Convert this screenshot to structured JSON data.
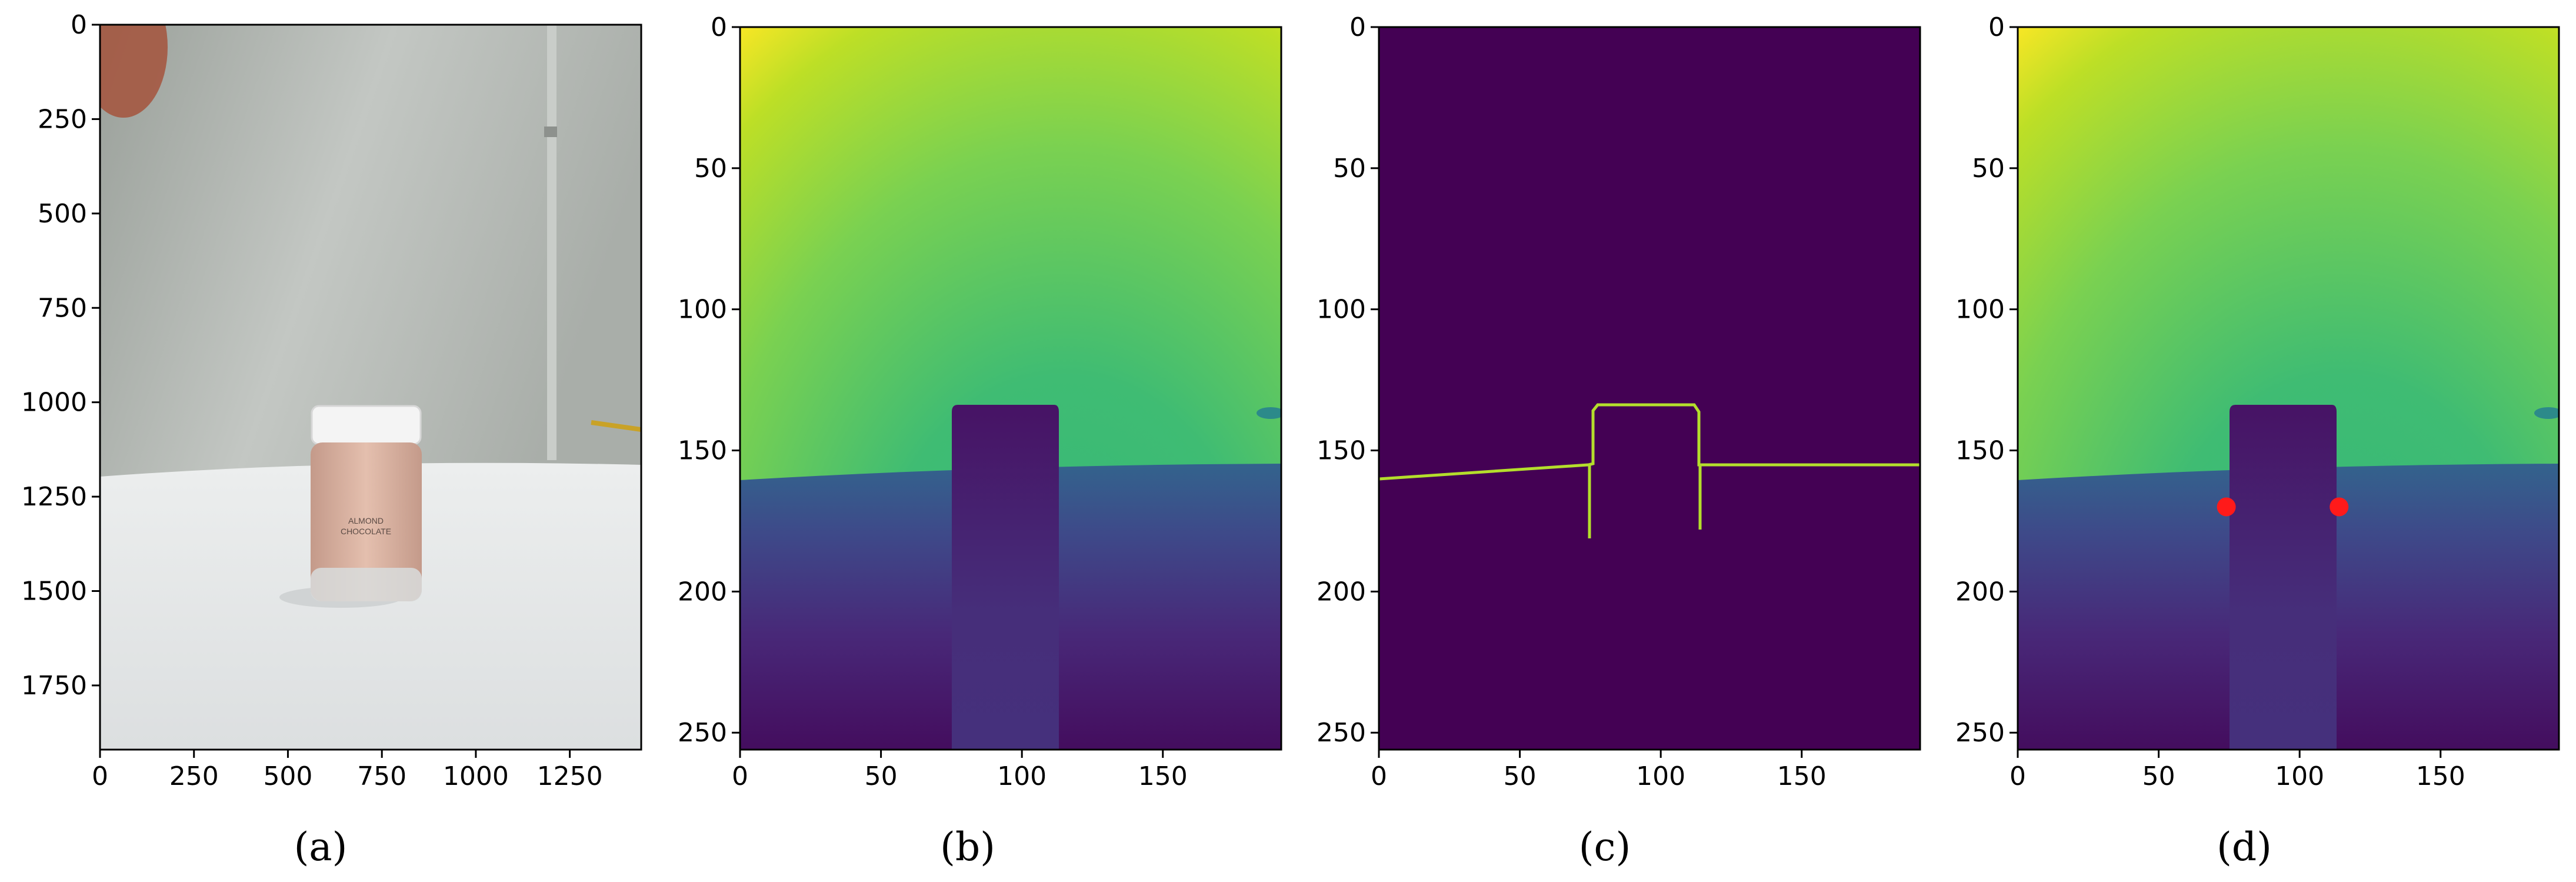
{
  "panels": [
    {
      "id": "a",
      "caption": "(a)",
      "kind": "photo",
      "xticks": [
        "0",
        "250",
        "500",
        "750",
        "1000",
        "1250"
      ],
      "yticks": [
        "0",
        "250",
        "500",
        "750",
        "1000",
        "1250",
        "1500",
        "1750"
      ],
      "xlim": [
        0,
        1440
      ],
      "ylim": [
        1920,
        0
      ],
      "jar_label": [
        "ALMOND",
        "CHOCOLATE"
      ]
    },
    {
      "id": "b",
      "caption": "(b)",
      "kind": "depth-map",
      "xticks": [
        "0",
        "50",
        "100",
        "150"
      ],
      "yticks": [
        "0",
        "50",
        "100",
        "150",
        "200",
        "250"
      ],
      "xlim": [
        0,
        192
      ],
      "ylim": [
        256,
        0
      ]
    },
    {
      "id": "c",
      "caption": "(c)",
      "kind": "edge-map",
      "xticks": [
        "0",
        "50",
        "100",
        "150"
      ],
      "yticks": [
        "0",
        "50",
        "100",
        "150",
        "200",
        "250"
      ],
      "xlim": [
        0,
        192
      ],
      "ylim": [
        256,
        0
      ]
    },
    {
      "id": "d",
      "caption": "(d)",
      "kind": "depth-map-with-points",
      "xticks": [
        "0",
        "50",
        "100",
        "150"
      ],
      "yticks": [
        "0",
        "50",
        "100",
        "150",
        "200",
        "250"
      ],
      "xlim": [
        0,
        192
      ],
      "ylim": [
        256,
        0
      ],
      "points": [
        {
          "x": 74,
          "y": 170
        },
        {
          "x": 114,
          "y": 170
        }
      ]
    }
  ],
  "colors": {
    "viridis_dark": "#440154",
    "viridis_blue": "#3b528b",
    "viridis_green": "#3dbc74",
    "viridis_yellow": "#fde725",
    "edge_line": "#b4de2c",
    "marker": "#ff1a1a"
  }
}
